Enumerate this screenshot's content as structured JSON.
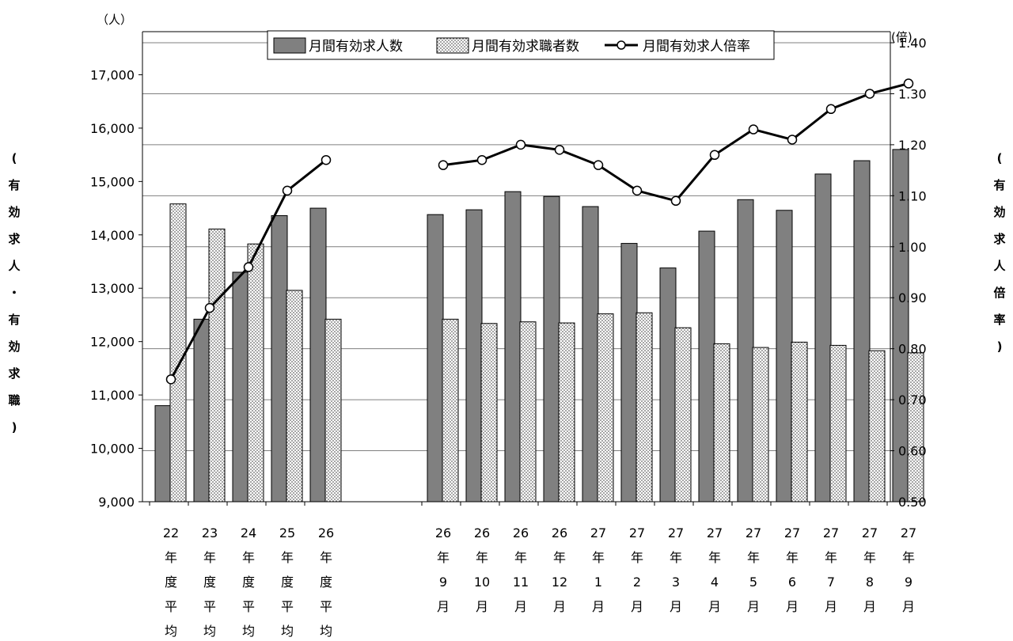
{
  "chart_data": {
    "type": "bar",
    "units": {
      "left": "（人）",
      "right": "(倍)"
    },
    "left_axis": {
      "title_chars": [
        "(",
        "有",
        "効",
        "求",
        "人",
        "・",
        "有",
        "効",
        "求",
        "職",
        ")"
      ],
      "ticks": [
        "9,000",
        "10,000",
        "11,000",
        "12,000",
        "13,000",
        "14,000",
        "15,000",
        "16,000",
        "17,000"
      ],
      "ylim": [
        9000,
        17600
      ]
    },
    "right_axis": {
      "title_chars": [
        "(",
        "有",
        "効",
        "求",
        "人",
        "倍",
        "率",
        ")"
      ],
      "ticks": [
        "0.50",
        "0.60",
        "0.70",
        "0.80",
        "0.90",
        "1.00",
        "1.10",
        "1.20",
        "1.30",
        "1.40"
      ],
      "ylim": [
        0.5,
        1.4
      ]
    },
    "grid": true,
    "legend_position": "top",
    "categories": [
      {
        "id": "fy22",
        "label_lines": [
          "22",
          "年",
          "度",
          "平",
          "均"
        ]
      },
      {
        "id": "fy23",
        "label_lines": [
          "23",
          "年",
          "度",
          "平",
          "均"
        ]
      },
      {
        "id": "fy24",
        "label_lines": [
          "24",
          "年",
          "度",
          "平",
          "均"
        ]
      },
      {
        "id": "fy25",
        "label_lines": [
          "25",
          "年",
          "度",
          "平",
          "均"
        ]
      },
      {
        "id": "fy26",
        "label_lines": [
          "26",
          "年",
          "度",
          "平",
          "均"
        ]
      },
      {
        "id": "2014-09",
        "label_lines": [
          "26",
          "年",
          "9",
          "月"
        ]
      },
      {
        "id": "2014-10",
        "label_lines": [
          "26",
          "年",
          "10",
          "月"
        ]
      },
      {
        "id": "2014-11",
        "label_lines": [
          "26",
          "年",
          "11",
          "月"
        ]
      },
      {
        "id": "2014-12",
        "label_lines": [
          "26",
          "年",
          "12",
          "月"
        ]
      },
      {
        "id": "2015-01",
        "label_lines": [
          "27",
          "年",
          "1",
          "月"
        ]
      },
      {
        "id": "2015-02",
        "label_lines": [
          "27",
          "年",
          "2",
          "月"
        ]
      },
      {
        "id": "2015-03",
        "label_lines": [
          "27",
          "年",
          "3",
          "月"
        ]
      },
      {
        "id": "2015-04",
        "label_lines": [
          "27",
          "年",
          "4",
          "月"
        ]
      },
      {
        "id": "2015-05",
        "label_lines": [
          "27",
          "年",
          "5",
          "月"
        ]
      },
      {
        "id": "2015-06",
        "label_lines": [
          "27",
          "年",
          "6",
          "月"
        ]
      },
      {
        "id": "2015-07",
        "label_lines": [
          "27",
          "年",
          "7",
          "月"
        ]
      },
      {
        "id": "2015-08",
        "label_lines": [
          "27",
          "年",
          "8",
          "月"
        ]
      },
      {
        "id": "2015-09",
        "label_lines": [
          "27",
          "年",
          "9",
          "月"
        ]
      }
    ],
    "groups": [
      {
        "name": "annual_average",
        "count": 5
      },
      {
        "name": "monthly",
        "count": 13
      }
    ],
    "series": [
      {
        "name": "月間有効求人数",
        "type": "bar",
        "axis": "left",
        "color": "#808080",
        "values": [
          10800,
          12420,
          13300,
          14360,
          14500,
          14380,
          14470,
          14810,
          14720,
          14530,
          13840,
          13380,
          14070,
          14660,
          14460,
          15140,
          15390,
          15600
        ]
      },
      {
        "name": "月間有効求職者数",
        "type": "bar",
        "axis": "left",
        "pattern": "dotted",
        "color": "#d9d9d9",
        "values": [
          14580,
          14110,
          13830,
          12960,
          12420,
          12420,
          12340,
          12370,
          12350,
          12520,
          12540,
          12260,
          11960,
          11890,
          11990,
          11930,
          11830,
          11790
        ]
      },
      {
        "name": "月間有効求人倍率",
        "type": "line",
        "axis": "right",
        "color": "#000000",
        "marker": "open-circle",
        "values": [
          0.74,
          0.88,
          0.96,
          1.11,
          1.17,
          1.16,
          1.17,
          1.2,
          1.19,
          1.16,
          1.11,
          1.09,
          1.18,
          1.23,
          1.21,
          1.27,
          1.3,
          1.32
        ]
      }
    ]
  }
}
